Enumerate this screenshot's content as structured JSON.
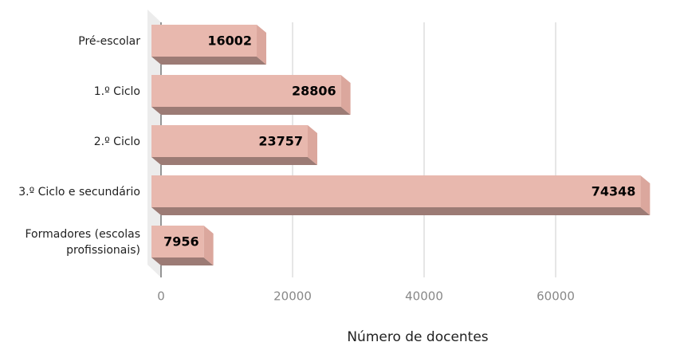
{
  "chart_data": {
    "type": "bar3d",
    "orientation": "horizontal",
    "categories": [
      "Pré-escolar",
      "1.º Ciclo",
      "2.º Ciclo",
      "3.º Ciclo e secundário",
      "Formadores (escolas profissionais)"
    ],
    "values": [
      16002,
      28806,
      23757,
      74348,
      7956
    ],
    "color": "#e8b8ae",
    "xlabel": "Número de docentes",
    "xlim": [
      0,
      75000
    ],
    "xticks": [
      0,
      20000,
      40000,
      60000
    ],
    "grid": true
  }
}
